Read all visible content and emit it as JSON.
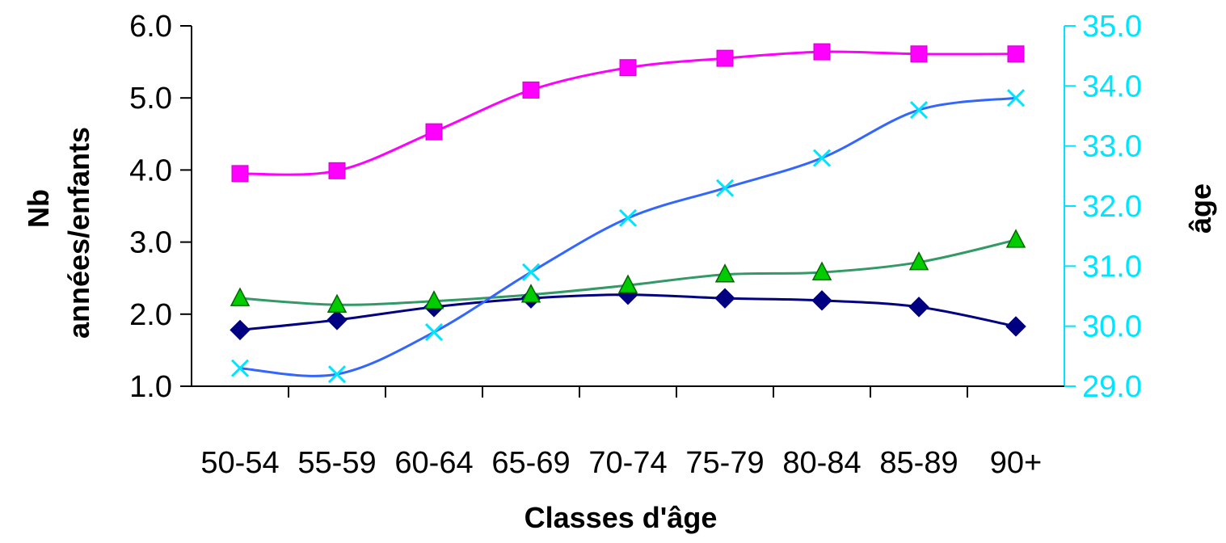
{
  "chart_data": {
    "type": "line",
    "xlabel": "Classes d'âge",
    "ylabel_left": [
      "Nb",
      "années/enfants"
    ],
    "ylabel_right": "âge",
    "categories": [
      "50-54",
      "55-59",
      "60-64",
      "65-69",
      "70-74",
      "75-79",
      "80-84",
      "85-89",
      "90+"
    ],
    "y_left": {
      "range": [
        1.0,
        6.0
      ],
      "ticks": [
        "1.0",
        "2.0",
        "3.0",
        "4.0",
        "5.0",
        "6.0"
      ],
      "color": "#000000"
    },
    "y_right": {
      "range": [
        29.0,
        35.0
      ],
      "ticks": [
        "29.0",
        "30.0",
        "31.0",
        "32.0",
        "33.0",
        "34.0",
        "35.0"
      ],
      "color": "#00e5ff"
    },
    "grid": false,
    "series": [
      {
        "axis": "left",
        "marker": "diamond",
        "color": "#000080",
        "values": [
          1.78,
          1.92,
          2.1,
          2.22,
          2.27,
          2.22,
          2.19,
          2.1,
          1.83
        ]
      },
      {
        "axis": "left",
        "marker": "square",
        "color": "#ff00ff",
        "values": [
          3.95,
          3.99,
          4.53,
          5.11,
          5.42,
          5.55,
          5.64,
          5.61,
          5.61
        ]
      },
      {
        "axis": "left",
        "marker": "triangle",
        "color": "#00cc00",
        "line_color": "#339966",
        "values": [
          2.22,
          2.13,
          2.18,
          2.27,
          2.4,
          2.55,
          2.58,
          2.72,
          3.03
        ]
      },
      {
        "axis": "right",
        "marker": "x",
        "color": "#00e5ff",
        "line_color": "#3366ff",
        "values": [
          29.3,
          29.2,
          29.9,
          30.9,
          31.8,
          32.3,
          32.8,
          33.6,
          33.8
        ]
      }
    ]
  }
}
